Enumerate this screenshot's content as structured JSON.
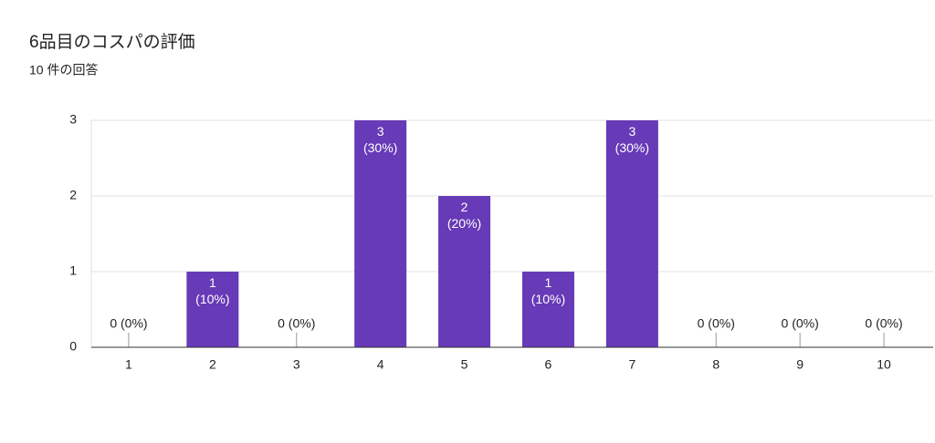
{
  "chart_data": {
    "type": "bar",
    "title": "6品目のコスパの評価",
    "subtitle": "10 件の回答",
    "categories": [
      "1",
      "2",
      "3",
      "4",
      "5",
      "6",
      "7",
      "8",
      "9",
      "10"
    ],
    "values": [
      0,
      1,
      0,
      3,
      2,
      1,
      3,
      0,
      0,
      0
    ],
    "value_labels": [
      "0 (0%)",
      "1 (10%)",
      "0 (0%)",
      "3 (30%)",
      "2 (20%)",
      "1 (10%)",
      "3 (30%)",
      "0 (0%)",
      "0 (0%)",
      "0 (0%)"
    ],
    "color": "#673ab7",
    "ylim": [
      0,
      3
    ],
    "yticks": [
      0,
      1,
      2,
      3
    ],
    "grid": true
  }
}
